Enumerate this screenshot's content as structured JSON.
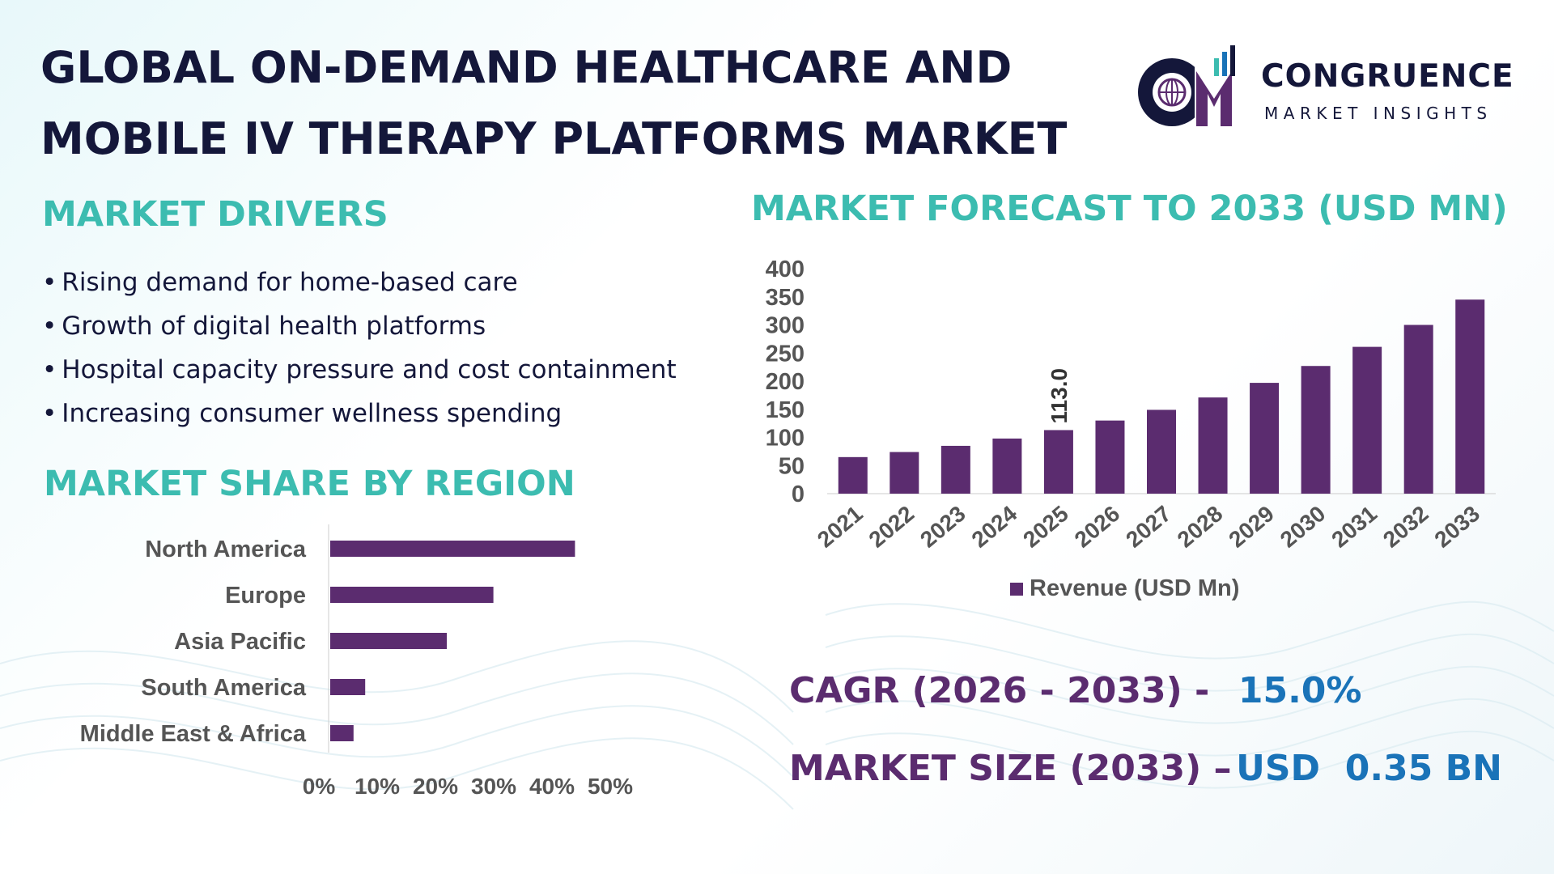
{
  "title": {
    "line1": "GLOBAL ON-DEMAND HEALTHCARE AND",
    "line2": "MOBILE IV THERAPY PLATFORMS MARKET"
  },
  "logo": {
    "brand": "CONGRUENCE",
    "tagline": "MARKET INSIGHTS",
    "icon": "globe-cm-logo-icon"
  },
  "colors": {
    "navy": "#14173a",
    "teal": "#3cbcb0",
    "purple": "#5b2c6f",
    "blue": "#1a73b8",
    "axis_text": "#555555"
  },
  "drivers": {
    "heading": "MARKET DRIVERS",
    "items": [
      "Rising demand for home-based care",
      "Growth of digital health platforms",
      "Hospital capacity pressure and cost containment",
      "Increasing consumer wellness spending"
    ]
  },
  "region": {
    "heading": "MARKET SHARE BY REGION"
  },
  "forecast": {
    "heading": "MARKET FORECAST TO 2033 (USD MN)"
  },
  "stats": {
    "cagr_label": "CAGR (2026 - 2033) -",
    "cagr_value": "15.0%",
    "size_label": "MARKET SIZE (2033) –",
    "size_value": "USD  0.35 BN"
  },
  "chart_data": [
    {
      "type": "bar",
      "orientation": "horizontal",
      "categories": [
        "North America",
        "Europe",
        "Asia Pacific",
        "South America",
        "Middle East & Africa"
      ],
      "values": [
        42,
        28,
        20,
        6,
        4
      ],
      "x_ticks": [
        "0%",
        "10%",
        "20%",
        "30%",
        "40%",
        "50%"
      ],
      "xlim": [
        0,
        50
      ],
      "color": "#5b2c6f",
      "grid": false
    },
    {
      "type": "bar",
      "categories": [
        "2021",
        "2022",
        "2023",
        "2024",
        "2025",
        "2026",
        "2027",
        "2028",
        "2029",
        "2030",
        "2031",
        "2032",
        "2033"
      ],
      "series": [
        {
          "name": "Revenue (USD Mn)",
          "values": [
            65,
            74,
            85,
            98,
            113.0,
            130,
            149,
            171,
            197,
            227,
            261,
            300,
            345
          ]
        }
      ],
      "data_labels": [
        {
          "index": 4,
          "text": "113.0"
        }
      ],
      "y_ticks": [
        "0",
        "50",
        "100",
        "150",
        "200",
        "250",
        "300",
        "350",
        "400"
      ],
      "ylim": [
        0,
        400
      ],
      "legend": "bottom",
      "color": "#5b2c6f",
      "grid": false
    }
  ]
}
